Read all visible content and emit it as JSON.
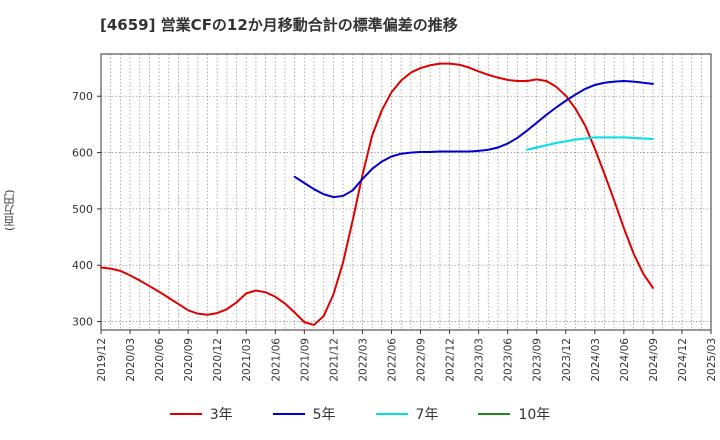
{
  "chart_data": {
    "type": "line",
    "title": "[4659]  営業CFの12か月移動合計の標準偏差の推移",
    "ylabel": "(百万円)",
    "xlabel": "",
    "x_ticks": [
      "2019/12",
      "2020/03",
      "2020/06",
      "2020/09",
      "2020/12",
      "2021/03",
      "2021/06",
      "2021/09",
      "2021/12",
      "2022/03",
      "2022/06",
      "2022/09",
      "2022/12",
      "2023/03",
      "2023/06",
      "2023/09",
      "2023/12",
      "2024/03",
      "2024/06",
      "2024/09",
      "2024/12",
      "2025/03"
    ],
    "y_ticks": [
      300,
      400,
      500,
      600,
      700
    ],
    "ylim": [
      285,
      775
    ],
    "grid": true,
    "legend_position": "bottom",
    "series": [
      {
        "name": "3年",
        "color": "#e00000",
        "x": [
          "2019/12",
          "2020/01",
          "2020/02",
          "2020/03",
          "2020/04",
          "2020/05",
          "2020/06",
          "2020/07",
          "2020/08",
          "2020/09",
          "2020/10",
          "2020/11",
          "2020/12",
          "2021/01",
          "2021/02",
          "2021/03",
          "2021/04",
          "2021/05",
          "2021/06",
          "2021/07",
          "2021/08",
          "2021/09",
          "2021/10",
          "2021/11",
          "2021/12",
          "2022/01",
          "2022/02",
          "2022/03",
          "2022/04",
          "2022/05",
          "2022/06",
          "2022/07",
          "2022/08",
          "2022/09",
          "2022/10",
          "2022/11",
          "2022/12",
          "2023/01",
          "2023/02",
          "2023/03",
          "2023/04",
          "2023/05",
          "2023/06",
          "2023/07",
          "2023/08",
          "2023/09",
          "2023/10",
          "2023/11",
          "2023/12",
          "2024/01",
          "2024/02",
          "2024/03",
          "2024/04",
          "2024/05",
          "2024/06",
          "2024/07",
          "2024/08",
          "2024/09"
        ],
        "values": [
          396,
          394,
          390,
          382,
          373,
          363,
          353,
          342,
          331,
          320,
          314,
          312,
          315,
          322,
          334,
          350,
          355,
          352,
          344,
          332,
          316,
          299,
          294,
          310,
          348,
          405,
          480,
          560,
          630,
          675,
          707,
          728,
          742,
          750,
          755,
          758,
          758,
          756,
          751,
          744,
          738,
          733,
          729,
          727,
          727,
          730,
          727,
          717,
          701,
          678,
          648,
          607,
          562,
          515,
          466,
          421,
          385,
          360
        ]
      },
      {
        "name": "5年",
        "color": "#0000cc",
        "x": [
          "2021/08",
          "2021/09",
          "2021/10",
          "2021/11",
          "2021/12",
          "2022/01",
          "2022/02",
          "2022/03",
          "2022/04",
          "2022/05",
          "2022/06",
          "2022/07",
          "2022/08",
          "2022/09",
          "2022/10",
          "2022/11",
          "2022/12",
          "2023/01",
          "2023/02",
          "2023/03",
          "2023/04",
          "2023/05",
          "2023/06",
          "2023/07",
          "2023/08",
          "2023/09",
          "2023/10",
          "2023/11",
          "2023/12",
          "2024/01",
          "2024/02",
          "2024/03",
          "2024/04",
          "2024/05",
          "2024/06",
          "2024/07",
          "2024/08",
          "2024/09"
        ],
        "values": [
          557,
          546,
          535,
          526,
          521,
          523,
          533,
          553,
          571,
          584,
          593,
          598,
          600,
          601,
          601,
          602,
          602,
          602,
          602,
          603,
          605,
          609,
          616,
          626,
          639,
          653,
          667,
          680,
          692,
          703,
          713,
          720,
          724,
          726,
          727,
          726,
          724,
          722
        ]
      },
      {
        "name": "7年",
        "color": "#00e0e0",
        "x": [
          "2023/08",
          "2023/09",
          "2023/10",
          "2023/11",
          "2023/12",
          "2024/01",
          "2024/02",
          "2024/03",
          "2024/04",
          "2024/05",
          "2024/06",
          "2024/07",
          "2024/08",
          "2024/09"
        ],
        "values": [
          605,
          609,
          613,
          617,
          620,
          623,
          625,
          627,
          627,
          627,
          627,
          626,
          625,
          624
        ]
      },
      {
        "name": "10年",
        "color": "#228822",
        "x": [],
        "values": []
      }
    ]
  }
}
